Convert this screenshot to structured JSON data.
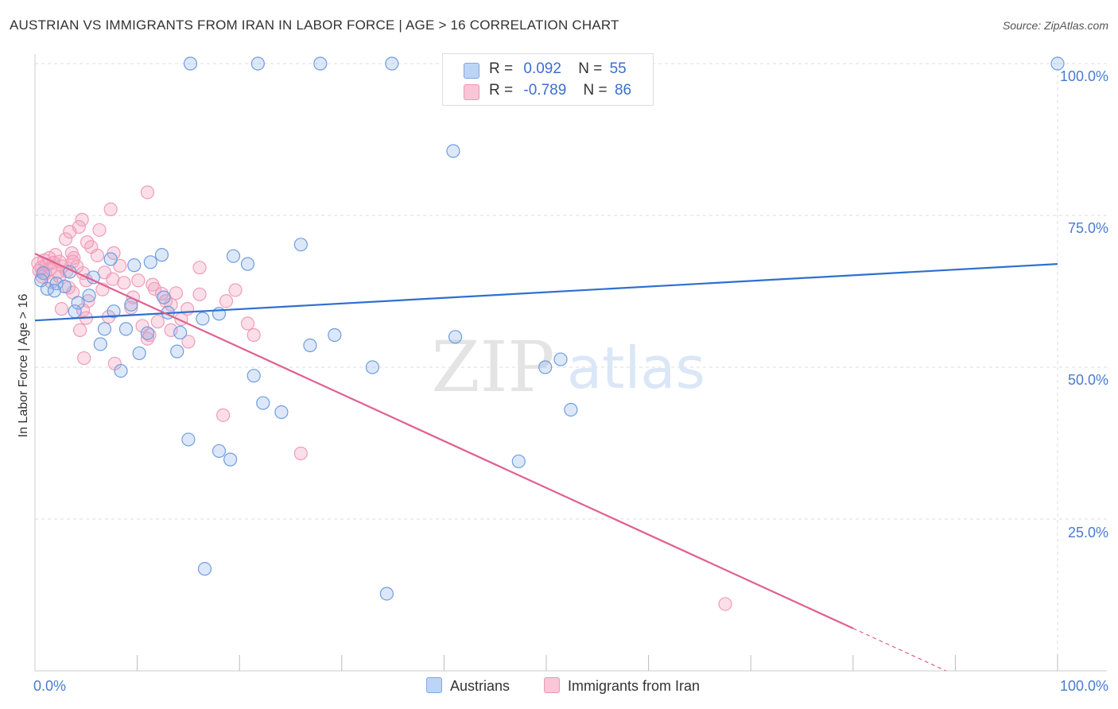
{
  "title": "AUSTRIAN VS IMMIGRANTS FROM IRAN IN LABOR FORCE | AGE > 16 CORRELATION CHART",
  "source": "Source: ZipAtlas.com",
  "watermark": {
    "zip": "ZIP",
    "atlas": "atlas"
  },
  "chart_data": {
    "type": "scatter",
    "title": "AUSTRIAN VS IMMIGRANTS FROM IRAN IN LABOR FORCE | AGE > 16 CORRELATION CHART",
    "xlabel": "",
    "ylabel": "In Labor Force | Age > 16",
    "xlim": [
      0,
      100
    ],
    "ylim": [
      0,
      100
    ],
    "x_tick_labels": {
      "left": "0.0%",
      "right": "100.0%"
    },
    "y_ticks": [
      {
        "value": 100,
        "label": "100.0%"
      },
      {
        "value": 75,
        "label": "75.0%"
      },
      {
        "value": 50,
        "label": "50.0%"
      },
      {
        "value": 25,
        "label": "25.0%"
      }
    ],
    "legend": {
      "rows": [
        {
          "r_label": "R =",
          "r_value": "0.092",
          "n_label": "N =",
          "n_value": "55"
        },
        {
          "r_label": "R =",
          "r_value": "-0.789",
          "n_label": "N =",
          "n_value": "86"
        }
      ]
    },
    "series": [
      {
        "name": "Austrians",
        "color": "#8ab4ea",
        "line_color": "#2f6fcf",
        "trend": {
          "x": [
            0,
            100
          ],
          "y": [
            57.7,
            67.0
          ]
        },
        "points": [
          [
            15.2,
            100
          ],
          [
            21.8,
            100
          ],
          [
            27.9,
            100
          ],
          [
            34.9,
            100
          ],
          [
            100,
            100
          ],
          [
            40.9,
            85.6
          ],
          [
            26.0,
            70.2
          ],
          [
            12.4,
            68.5
          ],
          [
            19.4,
            68.3
          ],
          [
            7.4,
            67.8
          ],
          [
            11.3,
            67.3
          ],
          [
            9.7,
            66.8
          ],
          [
            20.8,
            67.0
          ],
          [
            0.8,
            65.5
          ],
          [
            3.4,
            65.7
          ],
          [
            5.7,
            64.8
          ],
          [
            0.6,
            64.3
          ],
          [
            2.1,
            63.8
          ],
          [
            2.9,
            63.3
          ],
          [
            1.2,
            62.9
          ],
          [
            1.9,
            62.6
          ],
          [
            5.3,
            61.8
          ],
          [
            4.2,
            60.6
          ],
          [
            12.6,
            61.5
          ],
          [
            9.4,
            60.3
          ],
          [
            3.9,
            59.2
          ],
          [
            7.7,
            59.2
          ],
          [
            13.0,
            59.0
          ],
          [
            16.4,
            58.0
          ],
          [
            18.0,
            58.8
          ],
          [
            6.8,
            56.3
          ],
          [
            8.9,
            56.3
          ],
          [
            11.0,
            55.6
          ],
          [
            14.2,
            55.7
          ],
          [
            29.3,
            55.3
          ],
          [
            41.1,
            55.0
          ],
          [
            6.4,
            53.8
          ],
          [
            26.9,
            53.6
          ],
          [
            13.9,
            52.6
          ],
          [
            10.2,
            52.3
          ],
          [
            51.4,
            51.3
          ],
          [
            33.0,
            50.0
          ],
          [
            49.9,
            50.0
          ],
          [
            8.4,
            49.4
          ],
          [
            21.4,
            48.6
          ],
          [
            22.3,
            44.1
          ],
          [
            24.1,
            42.6
          ],
          [
            52.4,
            43.0
          ],
          [
            15.0,
            38.1
          ],
          [
            18.0,
            36.2
          ],
          [
            19.1,
            34.8
          ],
          [
            47.3,
            34.5
          ],
          [
            16.6,
            16.8
          ],
          [
            34.4,
            12.7
          ]
        ]
      },
      {
        "name": "Immigrants from Iran",
        "color": "#f4a3bd",
        "line_color": "#e0608f",
        "trend": {
          "x": [
            0,
            80
          ],
          "y": [
            68.7,
            7.0
          ]
        },
        "trend_dashed": {
          "x": [
            80,
            100
          ],
          "y": [
            7.0,
            -8.4
          ]
        },
        "points": [
          [
            11.0,
            78.8
          ],
          [
            7.4,
            76.0
          ],
          [
            4.6,
            74.3
          ],
          [
            4.3,
            73.1
          ],
          [
            3.4,
            72.3
          ],
          [
            6.3,
            72.6
          ],
          [
            3.0,
            71.1
          ],
          [
            5.1,
            70.6
          ],
          [
            5.5,
            69.8
          ],
          [
            3.6,
            68.8
          ],
          [
            7.7,
            68.8
          ],
          [
            2.0,
            68.5
          ],
          [
            1.4,
            68.0
          ],
          [
            3.8,
            68.0
          ],
          [
            0.9,
            67.6
          ],
          [
            2.4,
            67.4
          ],
          [
            1.8,
            67.2
          ],
          [
            0.3,
            67.1
          ],
          [
            1.1,
            66.9
          ],
          [
            2.7,
            66.6
          ],
          [
            0.6,
            66.4
          ],
          [
            1.5,
            66.2
          ],
          [
            0.4,
            65.9
          ],
          [
            3.1,
            65.8
          ],
          [
            2.2,
            65.6
          ],
          [
            1.0,
            65.4
          ],
          [
            4.7,
            65.5
          ],
          [
            6.8,
            65.6
          ],
          [
            8.3,
            66.7
          ],
          [
            16.1,
            66.4
          ],
          [
            0.7,
            64.9
          ],
          [
            2.4,
            64.9
          ],
          [
            7.6,
            64.5
          ],
          [
            5.0,
            64.3
          ],
          [
            10.1,
            64.3
          ],
          [
            8.7,
            63.9
          ],
          [
            11.5,
            63.6
          ],
          [
            3.3,
            63.1
          ],
          [
            6.6,
            62.8
          ],
          [
            11.7,
            62.9
          ],
          [
            13.8,
            62.2
          ],
          [
            16.1,
            62.0
          ],
          [
            19.6,
            62.7
          ],
          [
            3.7,
            62.3
          ],
          [
            12.4,
            62.1
          ],
          [
            9.6,
            61.5
          ],
          [
            5.2,
            60.9
          ],
          [
            12.8,
            60.9
          ],
          [
            18.7,
            60.9
          ],
          [
            13.3,
            60.3
          ],
          [
            9.4,
            59.8
          ],
          [
            2.6,
            59.6
          ],
          [
            4.7,
            59.4
          ],
          [
            14.9,
            59.6
          ],
          [
            7.2,
            58.3
          ],
          [
            5.0,
            58.1
          ],
          [
            14.3,
            57.9
          ],
          [
            12.0,
            57.5
          ],
          [
            20.8,
            57.2
          ],
          [
            10.5,
            56.8
          ],
          [
            4.4,
            56.1
          ],
          [
            13.3,
            56.1
          ],
          [
            11.2,
            55.3
          ],
          [
            21.4,
            55.3
          ],
          [
            15.0,
            54.2
          ],
          [
            11.0,
            54.7
          ],
          [
            4.8,
            51.5
          ],
          [
            7.8,
            50.6
          ],
          [
            18.4,
            42.1
          ],
          [
            26.0,
            35.8
          ],
          [
            67.5,
            11.0
          ],
          [
            3.7,
            67.4
          ],
          [
            1.6,
            64.0
          ],
          [
            4.1,
            66.6
          ],
          [
            6.1,
            68.4
          ]
        ]
      }
    ]
  }
}
